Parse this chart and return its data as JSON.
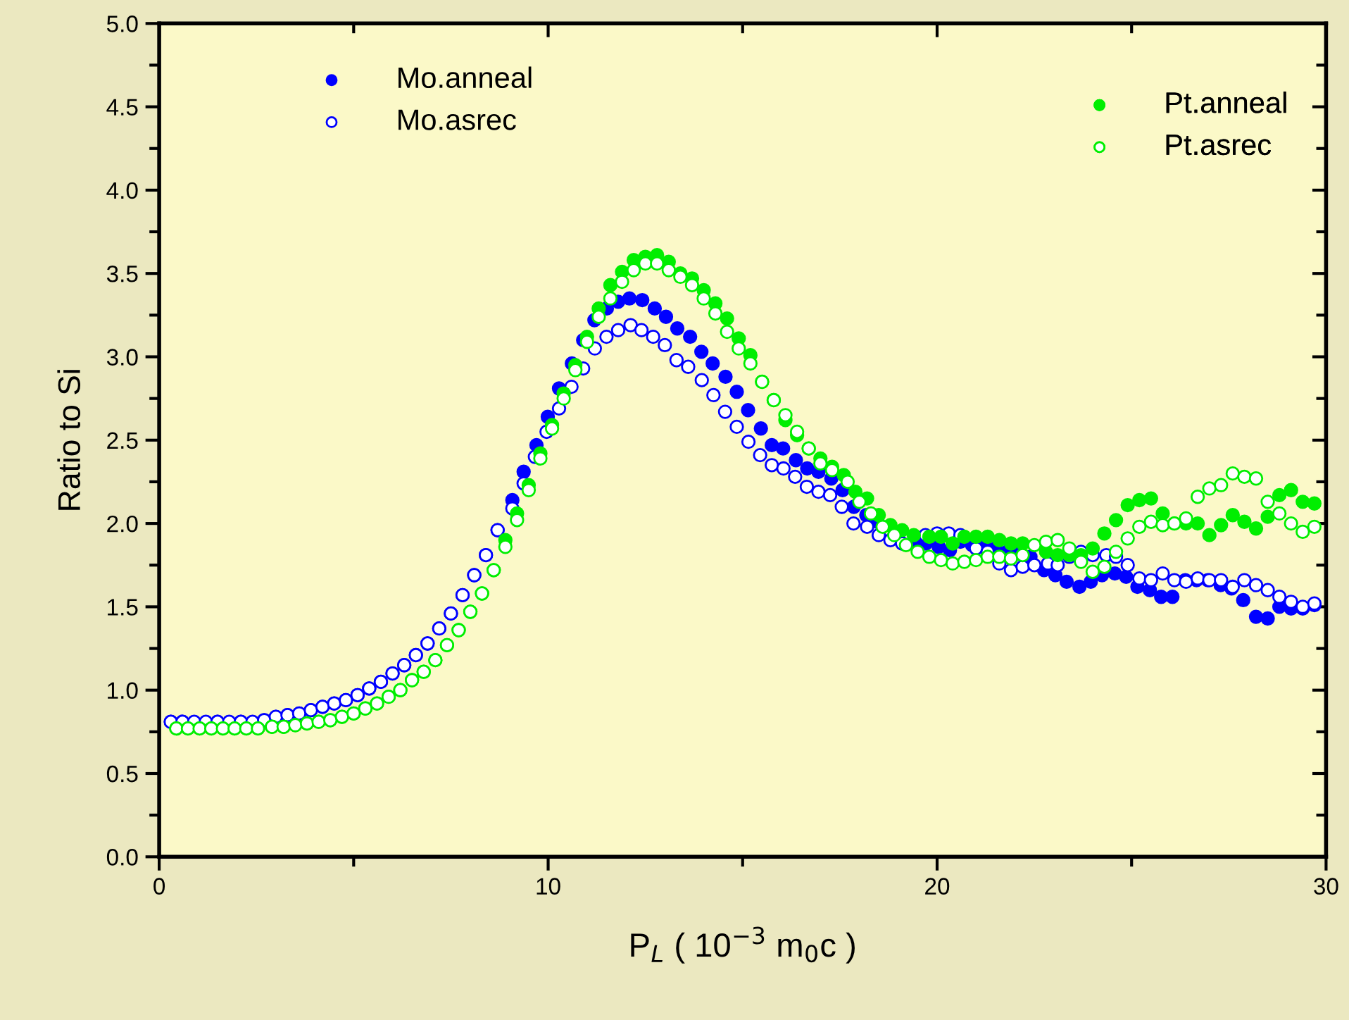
{
  "chart_data": {
    "type": "scatter",
    "xlabel": "P$_{L}$ ( 10$^{−3}$ m$_{0}$c )",
    "ylabel": "Ratio to Si",
    "xlim": [
      0,
      30
    ],
    "xticks": [
      0,
      10,
      20,
      30
    ],
    "ylim": [
      0,
      5
    ],
    "yticks": [
      {
        "value": 0,
        "label": "0.0"
      },
      {
        "value": 0.5,
        "label": "0.5"
      },
      {
        "value": 1,
        "label": "1.0"
      },
      {
        "value": 1.5,
        "label": "1.5"
      },
      {
        "value": 2,
        "label": "2.0"
      },
      {
        "value": 2.5,
        "label": "2.5"
      },
      {
        "value": 3,
        "label": "3.0"
      },
      {
        "value": 3.5,
        "label": "3.5"
      },
      {
        "value": 4,
        "label": "4.0"
      },
      {
        "value": 4.5,
        "label": "4.5"
      },
      {
        "value": 5,
        "label": "5.0"
      }
    ],
    "grid": false,
    "legend": "top",
    "series": [
      {
        "name": "Mo.anneal",
        "color": "#0000ff",
        "marker": "circle",
        "x": [
          0.3,
          0.6,
          1.5,
          2.1,
          2.7,
          3.0,
          3.3,
          3.6,
          3.9,
          4.2,
          4.5,
          4.8,
          5.1,
          5.4,
          5.7,
          6.0,
          6.3,
          6.6,
          6.9,
          7.2,
          7.5,
          7.8,
          8.1,
          8.4,
          8.7,
          9.08,
          9.37,
          9.7,
          9.99,
          10.28,
          10.61,
          10.9,
          11.19,
          11.51,
          11.8,
          12.09,
          12.42,
          12.74,
          13.03,
          13.32,
          13.65,
          13.94,
          14.23,
          14.56,
          14.85,
          15.14,
          15.47,
          15.75,
          16.04,
          16.37,
          16.66,
          16.95,
          17.28,
          17.57,
          17.86,
          18.18,
          18.47,
          19.42,
          19.71,
          20.04,
          20.33,
          20.6,
          20.9,
          21.2,
          21.5,
          21.8,
          22.1,
          22.4,
          22.75,
          23.04,
          23.33,
          23.66,
          23.95,
          24.24,
          24.57,
          24.86,
          25.15,
          25.47,
          25.76,
          26.05,
          26.38,
          26.67,
          26.96,
          27.29,
          27.57,
          27.87,
          28.2,
          28.5,
          28.8,
          29.1,
          29.4,
          29.7
        ],
        "values": [
          0.81,
          0.81,
          0.81,
          0.81,
          0.82,
          0.84,
          0.85,
          0.86,
          0.88,
          0.9,
          0.92,
          0.94,
          0.97,
          1.01,
          1.05,
          1.1,
          1.15,
          1.21,
          1.28,
          1.37,
          1.46,
          1.57,
          1.69,
          1.81,
          1.96,
          2.14,
          2.31,
          2.47,
          2.64,
          2.81,
          2.96,
          3.1,
          3.22,
          3.29,
          3.33,
          3.35,
          3.34,
          3.29,
          3.24,
          3.17,
          3.12,
          3.03,
          2.96,
          2.88,
          2.79,
          2.68,
          2.57,
          2.47,
          2.45,
          2.38,
          2.33,
          2.31,
          2.27,
          2.2,
          2.1,
          2.05,
          2.01,
          1.89,
          1.88,
          1.86,
          1.84,
          1.89,
          1.87,
          1.88,
          1.85,
          1.83,
          1.82,
          1.8,
          1.72,
          1.69,
          1.65,
          1.62,
          1.65,
          1.69,
          1.7,
          1.68,
          1.62,
          1.6,
          1.56,
          1.56,
          1.66,
          1.66,
          1.66,
          1.63,
          1.61,
          1.54,
          1.44,
          1.43,
          1.5,
          1.49,
          1.49,
          1.51
        ]
      },
      {
        "name": "Mo.asrec",
        "color": "#0000ff",
        "marker": "open circle",
        "x": [
          0.3,
          0.6,
          0.9,
          1.2,
          1.5,
          1.8,
          2.1,
          2.4,
          2.7,
          3.0,
          3.3,
          3.6,
          3.9,
          4.2,
          4.5,
          4.8,
          5.1,
          5.4,
          5.7,
          6.0,
          6.3,
          6.6,
          6.9,
          7.2,
          7.5,
          7.8,
          8.1,
          8.4,
          8.7,
          9.08,
          9.37,
          9.66,
          9.96,
          10.28,
          10.6,
          10.9,
          11.2,
          11.5,
          11.8,
          12.12,
          12.4,
          12.7,
          13.0,
          13.3,
          13.6,
          13.95,
          14.25,
          14.55,
          14.85,
          15.15,
          15.45,
          15.75,
          16.05,
          16.35,
          16.65,
          16.95,
          17.25,
          17.55,
          17.85,
          18.2,
          18.5,
          18.8,
          19.1,
          19.7,
          20.0,
          20.3,
          20.6,
          21.0,
          21.3,
          21.6,
          21.9,
          22.2,
          22.5,
          22.85,
          23.1,
          23.4,
          23.7,
          24.0,
          24.35,
          24.6,
          24.9,
          25.2,
          25.5,
          25.8,
          26.1,
          26.4,
          26.7,
          27.0,
          27.3,
          27.6,
          27.9,
          28.2,
          28.5,
          28.8,
          29.1,
          29.4,
          29.7
        ],
        "values": [
          0.81,
          0.81,
          0.81,
          0.81,
          0.81,
          0.81,
          0.81,
          0.81,
          0.82,
          0.84,
          0.85,
          0.86,
          0.88,
          0.9,
          0.92,
          0.94,
          0.97,
          1.01,
          1.05,
          1.1,
          1.15,
          1.21,
          1.28,
          1.37,
          1.46,
          1.57,
          1.69,
          1.81,
          1.96,
          2.09,
          2.24,
          2.4,
          2.55,
          2.69,
          2.82,
          2.93,
          3.05,
          3.12,
          3.16,
          3.19,
          3.16,
          3.12,
          3.07,
          2.98,
          2.94,
          2.86,
          2.77,
          2.67,
          2.58,
          2.49,
          2.41,
          2.35,
          2.33,
          2.28,
          2.22,
          2.19,
          2.17,
          2.1,
          2.0,
          1.98,
          1.93,
          1.9,
          1.88,
          1.93,
          1.94,
          1.94,
          1.93,
          1.85,
          1.83,
          1.76,
          1.72,
          1.74,
          1.75,
          1.76,
          1.75,
          1.8,
          1.83,
          1.81,
          1.81,
          1.8,
          1.75,
          1.67,
          1.66,
          1.7,
          1.66,
          1.65,
          1.67,
          1.66,
          1.66,
          1.62,
          1.66,
          1.63,
          1.6,
          1.56,
          1.53,
          1.5,
          1.52
        ]
      },
      {
        "name": "Pt.anneal",
        "color": "#00ee00",
        "marker": "circle",
        "x": [
          0.44,
          0.74,
          1.04,
          1.34,
          1.64,
          1.94,
          2.24,
          2.54,
          2.9,
          3.2,
          3.5,
          3.8,
          4.1,
          4.4,
          4.7,
          5.0,
          5.3,
          5.6,
          5.9,
          6.2,
          6.5,
          6.8,
          7.1,
          7.4,
          7.7,
          8.0,
          8.3,
          8.6,
          8.9,
          9.2,
          9.5,
          9.8,
          10.1,
          10.4,
          10.7,
          11.0,
          11.3,
          11.6,
          11.9,
          12.2,
          12.5,
          12.8,
          13.1,
          13.4,
          13.7,
          14.0,
          14.3,
          14.6,
          14.9,
          15.2,
          15.5,
          15.8,
          16.1,
          16.4,
          16.7,
          17.0,
          17.3,
          17.6,
          17.9,
          18.2,
          18.5,
          18.8,
          19.1,
          19.4,
          19.8,
          20.1,
          20.4,
          20.7,
          21.0,
          21.3,
          21.6,
          21.9,
          22.2,
          22.8,
          23.1,
          23.4,
          23.7,
          24.0,
          24.3,
          24.6,
          24.9,
          25.2,
          25.5,
          25.8,
          26.1,
          26.4,
          26.7,
          27.0,
          27.3,
          27.6,
          27.9,
          28.2,
          28.5,
          28.8,
          29.1,
          29.4,
          29.7
        ],
        "values": [
          0.77,
          0.77,
          0.77,
          0.77,
          0.77,
          0.77,
          0.77,
          0.77,
          0.78,
          0.78,
          0.79,
          0.8,
          0.81,
          0.82,
          0.84,
          0.86,
          0.89,
          0.92,
          0.96,
          1.0,
          1.06,
          1.11,
          1.18,
          1.27,
          1.36,
          1.47,
          1.58,
          1.72,
          1.9,
          2.06,
          2.23,
          2.42,
          2.59,
          2.78,
          2.95,
          3.12,
          3.29,
          3.43,
          3.51,
          3.58,
          3.6,
          3.61,
          3.57,
          3.5,
          3.47,
          3.4,
          3.32,
          3.23,
          3.11,
          3.01,
          2.85,
          2.74,
          2.62,
          2.53,
          2.45,
          2.39,
          2.34,
          2.29,
          2.19,
          2.15,
          2.05,
          1.99,
          1.96,
          1.93,
          1.92,
          1.92,
          1.88,
          1.92,
          1.92,
          1.92,
          1.9,
          1.88,
          1.88,
          1.83,
          1.81,
          1.81,
          1.81,
          1.85,
          1.94,
          2.02,
          2.11,
          2.14,
          2.15,
          2.06,
          2.0,
          2.0,
          2.0,
          1.93,
          1.99,
          2.05,
          2.01,
          1.97,
          2.04,
          2.17,
          2.2,
          2.13,
          2.12
        ]
      },
      {
        "name": "Pt.asrec",
        "color": "#00ee00",
        "marker": "open circle",
        "x": [
          0.44,
          0.74,
          1.04,
          1.34,
          1.64,
          1.94,
          2.24,
          2.54,
          2.9,
          3.2,
          3.5,
          3.8,
          4.1,
          4.4,
          4.7,
          5.0,
          5.3,
          5.6,
          5.9,
          6.2,
          6.5,
          6.8,
          7.1,
          7.4,
          7.7,
          8.0,
          8.3,
          8.6,
          8.9,
          9.2,
          9.5,
          9.8,
          10.1,
          10.4,
          10.7,
          11.0,
          11.3,
          11.6,
          11.9,
          12.2,
          12.5,
          12.8,
          13.1,
          13.4,
          13.7,
          14.0,
          14.3,
          14.6,
          14.9,
          15.2,
          15.5,
          15.8,
          16.1,
          16.4,
          16.7,
          17.0,
          17.3,
          17.7,
          18.0,
          18.3,
          18.6,
          18.9,
          19.2,
          19.5,
          19.8,
          20.1,
          20.4,
          20.7,
          21.0,
          21.3,
          21.6,
          21.9,
          22.2,
          22.5,
          22.8,
          23.1,
          23.4,
          23.7,
          24.0,
          24.3,
          24.6,
          24.9,
          25.2,
          25.5,
          25.8,
          26.1,
          26.4,
          26.7,
          27.0,
          27.3,
          27.6,
          27.9,
          28.2,
          28.5,
          28.8,
          29.1,
          29.4,
          29.7
        ],
        "values": [
          0.77,
          0.77,
          0.77,
          0.77,
          0.77,
          0.77,
          0.77,
          0.77,
          0.78,
          0.78,
          0.79,
          0.8,
          0.81,
          0.82,
          0.84,
          0.86,
          0.89,
          0.92,
          0.96,
          1.0,
          1.06,
          1.11,
          1.18,
          1.27,
          1.36,
          1.47,
          1.58,
          1.72,
          1.86,
          2.02,
          2.2,
          2.39,
          2.57,
          2.75,
          2.92,
          3.09,
          3.24,
          3.35,
          3.45,
          3.52,
          3.56,
          3.56,
          3.52,
          3.48,
          3.43,
          3.35,
          3.26,
          3.15,
          3.05,
          2.96,
          2.85,
          2.74,
          2.65,
          2.55,
          2.45,
          2.36,
          2.32,
          2.25,
          2.13,
          2.06,
          1.98,
          1.93,
          1.87,
          1.83,
          1.8,
          1.78,
          1.76,
          1.77,
          1.78,
          1.8,
          1.8,
          1.79,
          1.81,
          1.87,
          1.89,
          1.9,
          1.85,
          1.77,
          1.71,
          1.74,
          1.83,
          1.91,
          1.98,
          2.01,
          1.99,
          2.0,
          2.03,
          2.16,
          2.21,
          2.23,
          2.3,
          2.28,
          2.27,
          2.13,
          2.06,
          2.0,
          1.95,
          1.98
        ]
      }
    ]
  }
}
